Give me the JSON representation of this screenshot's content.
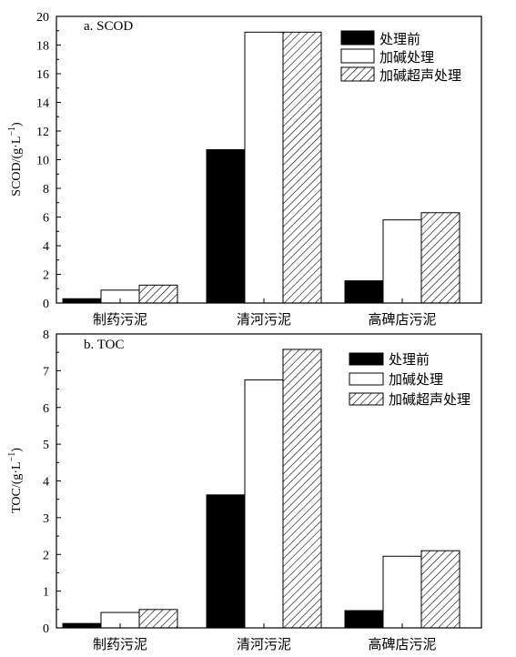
{
  "chart_data": [
    {
      "type": "bar",
      "title": "a. SCOD",
      "xlabel": "",
      "ylabel": "SCOD/(g·L",
      "ylabel_sup": "−1",
      "ylabel_close": ")",
      "categories": [
        "制药污泥",
        "清河污泥",
        "高碑店污泥"
      ],
      "series": [
        {
          "name": "处理前",
          "fill": "solid",
          "values": [
            0.3,
            10.7,
            1.55
          ]
        },
        {
          "name": "加碱处理",
          "fill": "open",
          "values": [
            0.9,
            18.9,
            5.8
          ]
        },
        {
          "name": "加碱超声处理",
          "fill": "hatched",
          "values": [
            1.25,
            18.9,
            6.3
          ]
        }
      ],
      "ylim": [
        0,
        20
      ],
      "yticks": [
        0,
        2,
        4,
        6,
        8,
        10,
        12,
        14,
        16,
        18,
        20
      ],
      "legend": "top-right",
      "grid": false
    },
    {
      "type": "bar",
      "title": "b. TOC",
      "xlabel": "",
      "ylabel": "TOC/(g·L",
      "ylabel_sup": "−1",
      "ylabel_close": ")",
      "categories": [
        "制药污泥",
        "清河污泥",
        "高碑店污泥"
      ],
      "series": [
        {
          "name": "处理前",
          "fill": "solid",
          "values": [
            0.12,
            3.62,
            0.47
          ]
        },
        {
          "name": "加碱处理",
          "fill": "open",
          "values": [
            0.42,
            6.75,
            1.95
          ]
        },
        {
          "name": "加碱超声处理",
          "fill": "hatched",
          "values": [
            0.5,
            7.58,
            2.1
          ]
        }
      ],
      "ylim": [
        0,
        8
      ],
      "yticks": [
        0,
        1,
        2,
        3,
        4,
        5,
        6,
        7,
        8
      ],
      "legend": "top-right",
      "grid": false
    }
  ]
}
